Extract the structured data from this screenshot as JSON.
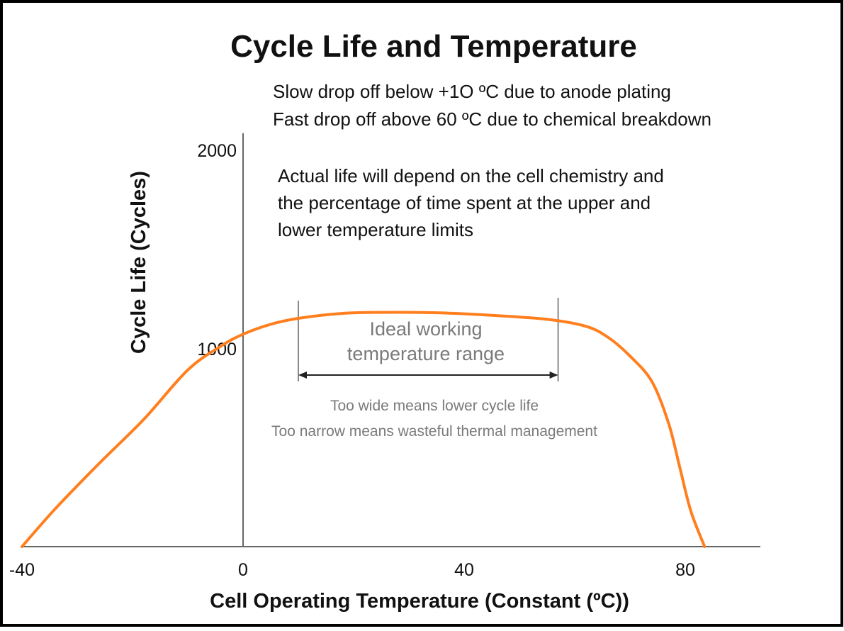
{
  "chart_data": {
    "type": "line",
    "title": "Cycle Life and Temperature",
    "subtitle": [
      "Slow drop off below +1O ºC due to anode plating",
      "Fast drop off above 60 ºC due to chemical breakdown"
    ],
    "xlabel": "Cell Operating Temperature (Constant (ºC))",
    "ylabel": "Cycle Life (Cycles)",
    "xlim": [
      -40,
      80
    ],
    "ylim": [
      0,
      2000
    ],
    "x_ticks": [
      "-40",
      "0",
      "40",
      "80"
    ],
    "y_ticks": [
      "1000",
      "2000"
    ],
    "series": [
      {
        "color": "#ff7f1e",
        "x": [
          -40,
          -34,
          -26,
          -18,
          -10,
          -4,
          0,
          5,
          10,
          18,
          25,
          35,
          45,
          55,
          62,
          66,
          70,
          74,
          77,
          79,
          81,
          83.5
        ],
        "y": [
          0,
          190,
          420,
          640,
          890,
          1010,
          1070,
          1120,
          1150,
          1175,
          1180,
          1178,
          1165,
          1145,
          1110,
          1055,
          960,
          830,
          620,
          400,
          180,
          0
        ]
      }
    ],
    "annotations": {
      "note": [
        "Actual life will depend on the cell chemistry and",
        "the percentage of time spent at the upper and",
        "lower temperature limits"
      ],
      "range_label": [
        "Ideal working",
        "temperature range"
      ],
      "range": [
        10,
        57
      ],
      "range_caption": [
        "Too wide means lower cycle life",
        "Too narrow means wasteful thermal management"
      ]
    }
  }
}
